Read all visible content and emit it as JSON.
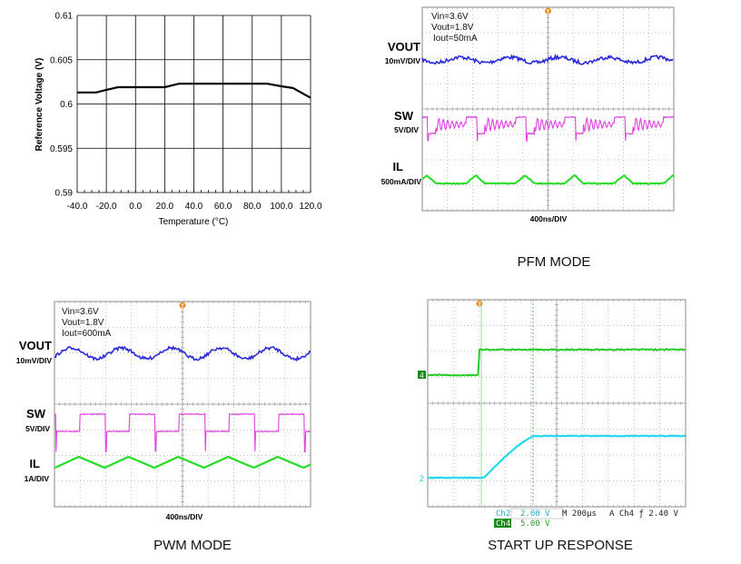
{
  "chart_data": [
    {
      "type": "line",
      "xlabel": "Temperature (°C)",
      "ylabel": "Reference Voltage (V)",
      "xlim": [
        -40,
        120
      ],
      "ylim": [
        0.59,
        0.61
      ],
      "x_ticks": [
        "-40.0",
        "-20.0",
        "0.0",
        "20.0",
        "40.0",
        "60.0",
        "80.0",
        "100.0",
        "120.0"
      ],
      "y_ticks": [
        "0.59",
        "0.595",
        "0.6",
        "0.605",
        "0.61"
      ],
      "grid": true,
      "series": [
        {
          "x": [
            -40,
            -27,
            -20,
            -12,
            20,
            30,
            90,
            100,
            108,
            120
          ],
          "y": [
            0.6013,
            0.6013,
            0.6016,
            0.6019,
            0.6019,
            0.6023,
            0.6023,
            0.602,
            0.6018,
            0.6007
          ],
          "color": "#000000"
        }
      ]
    },
    {
      "type": "line",
      "caption": "PFM MODE",
      "conditions": [
        "Vin=3.6V",
        "Vout=1.8V",
        "Iout=50mA"
      ],
      "timebase": "400ns/DIV",
      "traces": [
        {
          "name": "VOUT",
          "scale": "10mV/DIV",
          "color": "#2a2ad8"
        },
        {
          "name": "SW",
          "scale": "5V/DIV",
          "color": "#e040e0"
        },
        {
          "name": "IL",
          "scale": "500mA/DIV",
          "color": "#22dd22"
        }
      ]
    },
    {
      "type": "line",
      "caption": "PWM MODE",
      "conditions": [
        "Vin=3.6V",
        "Vout=1.8V",
        "Iout=600mA"
      ],
      "timebase": "400ns/DIV",
      "traces": [
        {
          "name": "VOUT",
          "scale": "10mV/DIV",
          "color": "#2a2ad8"
        },
        {
          "name": "SW",
          "scale": "5V/DIV",
          "color": "#e040e0"
        },
        {
          "name": "IL",
          "scale": "1A/DIV",
          "color": "#22dd22"
        }
      ]
    },
    {
      "type": "line",
      "caption": "START UP RESPONSE",
      "channel_markers": [
        "4",
        "2"
      ],
      "status": {
        "ch2_label": "Ch2",
        "ch2_scale": "2.00 V",
        "ch4_label": "Ch4",
        "ch4_scale": "5.00 V",
        "timebase": "M 200µs",
        "trigger": "A  Ch4  ƒ  2.40 V"
      },
      "traces": [
        {
          "channel": "Ch4",
          "color": "#22cc22"
        },
        {
          "channel": "Ch2",
          "color": "#22d8ee"
        }
      ]
    }
  ],
  "colors": {
    "trigger": "#f08a20",
    "grid": "#888888"
  }
}
